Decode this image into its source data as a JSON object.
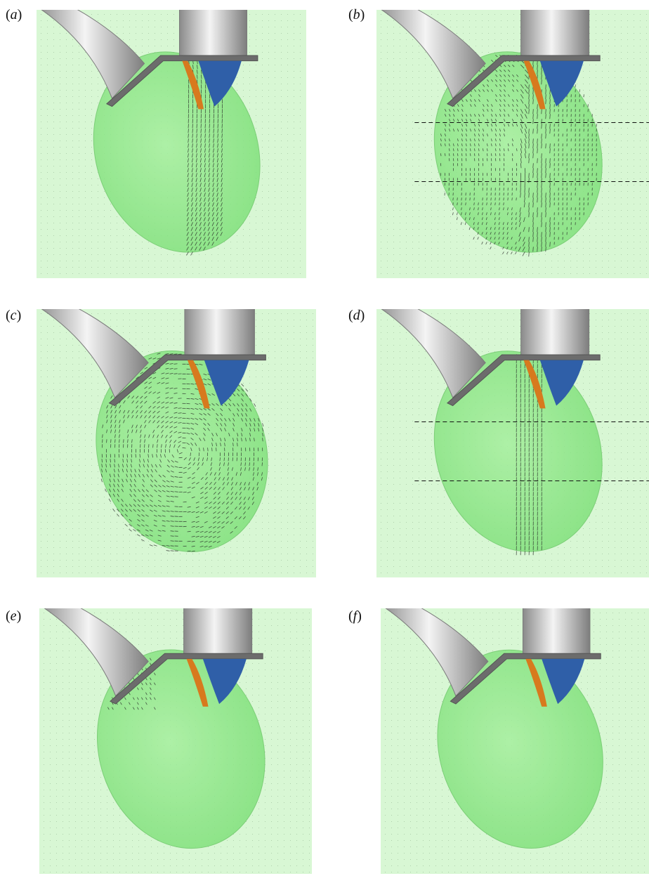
{
  "figure": {
    "panels": [
      {
        "id": "a",
        "label_open": "(",
        "label_letter": "a",
        "label_close": ")",
        "dashed_lines": false,
        "vectors": "right-stream"
      },
      {
        "id": "b",
        "label_open": "(",
        "label_letter": "b",
        "label_close": ")",
        "dashed_lines": true,
        "vectors": "dense"
      },
      {
        "id": "c",
        "label_open": "(",
        "label_letter": "c",
        "label_close": ")",
        "dashed_lines": false,
        "vectors": "left-swirl"
      },
      {
        "id": "d",
        "label_open": "(",
        "label_letter": "d",
        "label_close": ")",
        "dashed_lines": true,
        "vectors": "center-stream"
      },
      {
        "id": "e",
        "label_open": "(",
        "label_letter": "e",
        "label_close": ")",
        "dashed_lines": false,
        "vectors": "sparse"
      },
      {
        "id": "f",
        "label_open": "(",
        "label_letter": "f",
        "label_close": ")",
        "dashed_lines": false,
        "vectors": "none"
      }
    ],
    "colors": {
      "background": "#d8f7d4",
      "chamber": "#7fe07a",
      "valve_blue": "#2f5fa8",
      "valve_orange": "#d77a1e",
      "tube": "#c8c8c8",
      "flange": "#6c6c6c",
      "vector": "#222222"
    }
  }
}
